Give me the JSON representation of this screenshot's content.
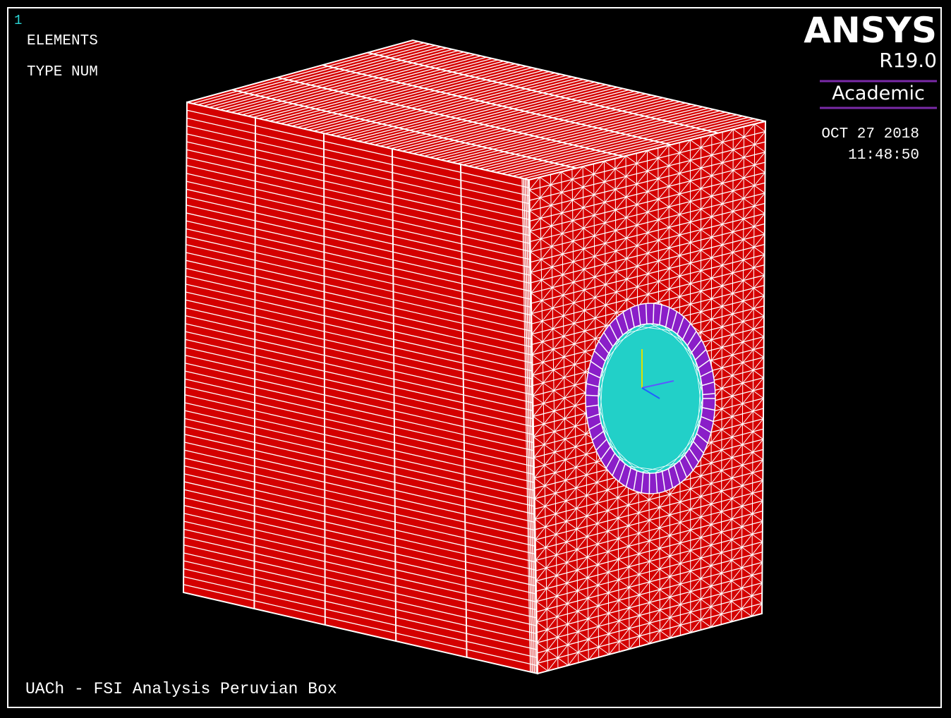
{
  "window_number": "1",
  "legend": {
    "line1": "ELEMENTS",
    "line2": "TYPE NUM"
  },
  "brand": {
    "name": "ANSYS",
    "version": "R19.0",
    "license": "Academic"
  },
  "timestamp": {
    "date": "OCT 27 2018",
    "time": "11:48:50"
  },
  "model_title": "UACh - FSI Analysis Peruvian Box"
}
